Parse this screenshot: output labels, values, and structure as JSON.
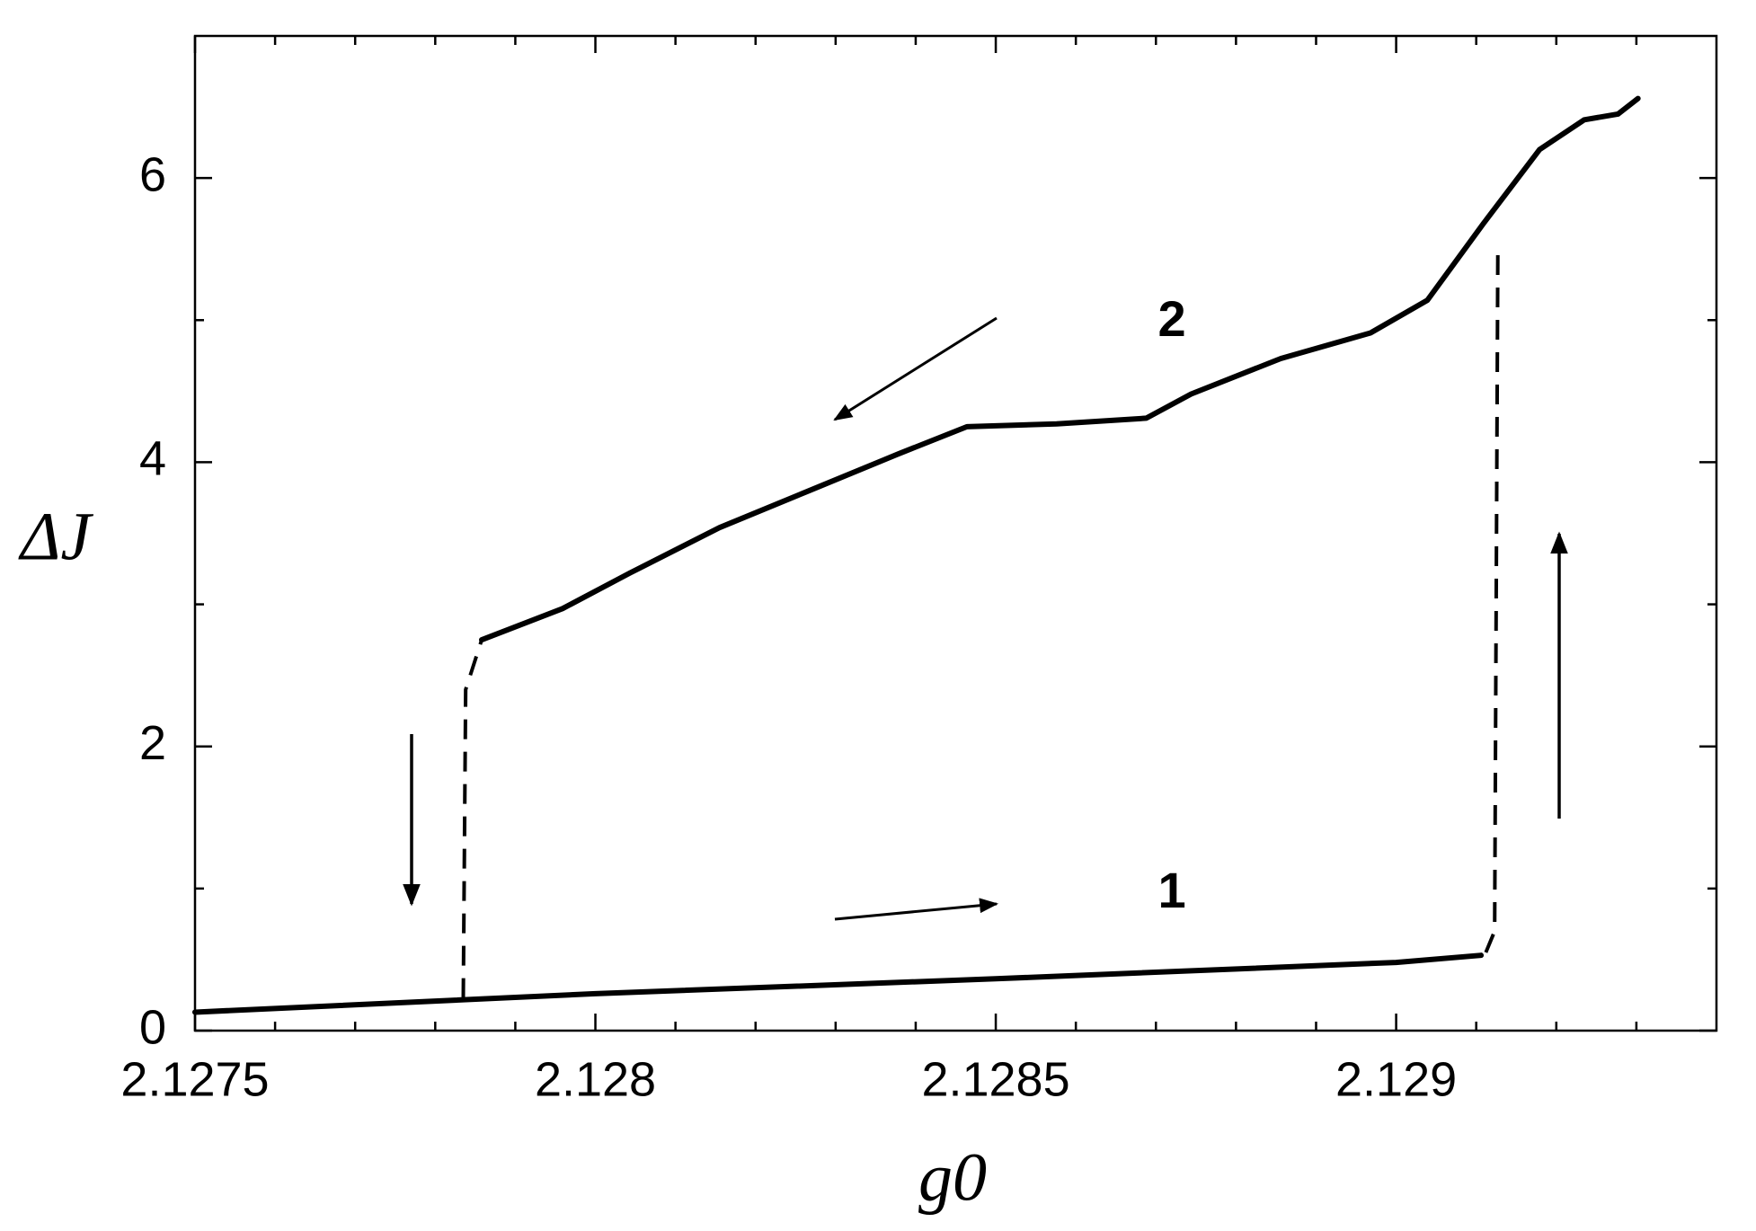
{
  "chart_data": {
    "type": "line",
    "xlabel": "g0",
    "ylabel": "ΔJ",
    "xlim": [
      2.1275,
      2.1294
    ],
    "ylim": [
      0,
      7
    ],
    "xticks": [
      2.1275,
      2.128,
      2.1285,
      2.129
    ],
    "xminorticks": [
      2.1276,
      2.1277,
      2.1278,
      2.1279,
      2.1281,
      2.1282,
      2.1283,
      2.1284,
      2.1286,
      2.1287,
      2.1288,
      2.1289,
      2.1291,
      2.1292,
      2.1293
    ],
    "yticks": [
      0,
      2,
      4,
      6
    ],
    "yminorticks": [
      1,
      3,
      5
    ],
    "series": [
      {
        "color": "#000000",
        "style": "solid",
        "x": [
          2.1275,
          2.128,
          2.1285,
          2.129,
          2.129106
        ],
        "values": [
          0.13,
          0.26,
          0.365,
          0.48,
          0.53
        ]
      },
      {
        "color": "#000000",
        "style": "solid",
        "x": [
          2.127858,
          2.127959,
          2.128043,
          2.128155,
          2.128267,
          2.128379,
          2.128464,
          2.128576,
          2.128688,
          2.128744,
          2.128856,
          2.128968,
          2.129039,
          2.129109,
          2.129179,
          2.129235,
          2.129277,
          2.129302
        ],
        "values": [
          2.75,
          2.97,
          3.22,
          3.54,
          3.8,
          4.06,
          4.25,
          4.27,
          4.31,
          4.48,
          4.73,
          4.91,
          5.14,
          5.68,
          6.2,
          6.41,
          6.45,
          6.56
        ]
      },
      {
        "color": "#000000",
        "style": "dashed",
        "x": [
          2.127835,
          2.127838,
          2.127858
        ],
        "values": [
          0.23,
          2.4,
          2.75
        ]
      },
      {
        "color": "#000000",
        "style": "dashed",
        "x": [
          2.129112,
          2.129123,
          2.129127
        ],
        "values": [
          0.55,
          0.7,
          5.5
        ]
      }
    ],
    "annotations": [
      {
        "text": "2",
        "x": 2.12872,
        "y": 4.98
      },
      {
        "text": "1",
        "x": 2.12872,
        "y": 0.96
      }
    ]
  }
}
